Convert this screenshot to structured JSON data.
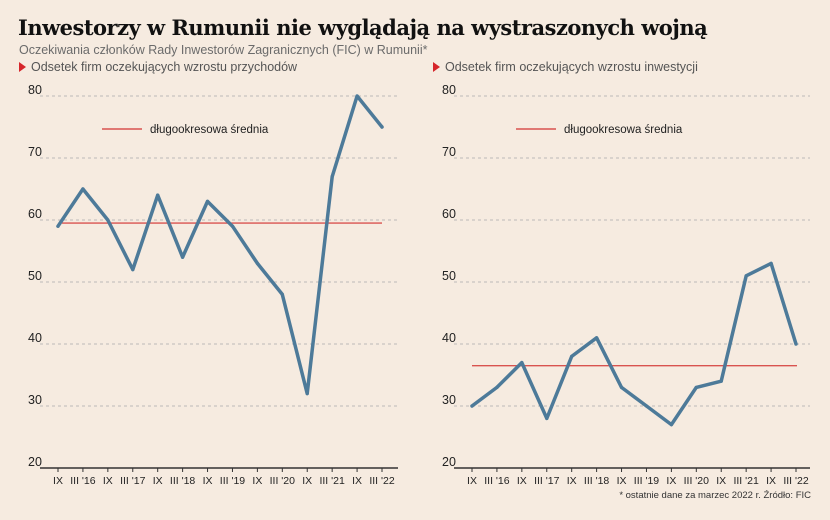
{
  "title": "Inwestorzy w Rumunii nie wyglądają na wystraszonych wojną",
  "subtitle": "Oczekiwania członków Rady Inwestorów Zagranicznych (FIC) w Rumunii*",
  "footnote": "* ostatnie dane za marzec 2022 r. Źródło: FIC",
  "colors": {
    "line": "#4d7a99",
    "average": "#d9534f",
    "marker": "#d6262b",
    "axis": "#333333",
    "grid": "#a9a9a9",
    "background": "#f6ebe0"
  },
  "chart_data": [
    {
      "type": "line",
      "title": "Odsetek firm oczekujących wzrostu przychodów",
      "ylim": [
        20,
        80
      ],
      "yticks": [
        20,
        30,
        40,
        50,
        60,
        70,
        80
      ],
      "grid": true,
      "x_labels": [
        "IX",
        "III '16",
        "IX",
        "III '17",
        "IX",
        "III '18",
        "IX",
        "III '19",
        "IX",
        "III '20",
        "IX",
        "III '21",
        "IX",
        "III '22"
      ],
      "series": [
        {
          "values": [
            59,
            65,
            60,
            52,
            64,
            54,
            63,
            59,
            53,
            48,
            32,
            67,
            80,
            75
          ]
        }
      ],
      "average": {
        "label": "długookresowa średnia",
        "value": 59.5
      }
    },
    {
      "type": "line",
      "title": "Odsetek firm oczekujących wzrostu inwestycji",
      "ylim": [
        20,
        80
      ],
      "yticks": [
        20,
        30,
        40,
        50,
        60,
        70,
        80
      ],
      "grid": true,
      "x_labels": [
        "IX",
        "III '16",
        "IX",
        "III '17",
        "IX",
        "III '18",
        "IX",
        "III '19",
        "IX",
        "III '20",
        "IX",
        "III '21",
        "IX",
        "III '22"
      ],
      "series": [
        {
          "values": [
            30,
            33,
            37,
            28,
            38,
            41,
            33,
            30,
            27,
            33,
            34,
            51,
            53,
            40
          ]
        }
      ],
      "average": {
        "label": "długookresowa średnia",
        "value": 36.5
      }
    }
  ]
}
